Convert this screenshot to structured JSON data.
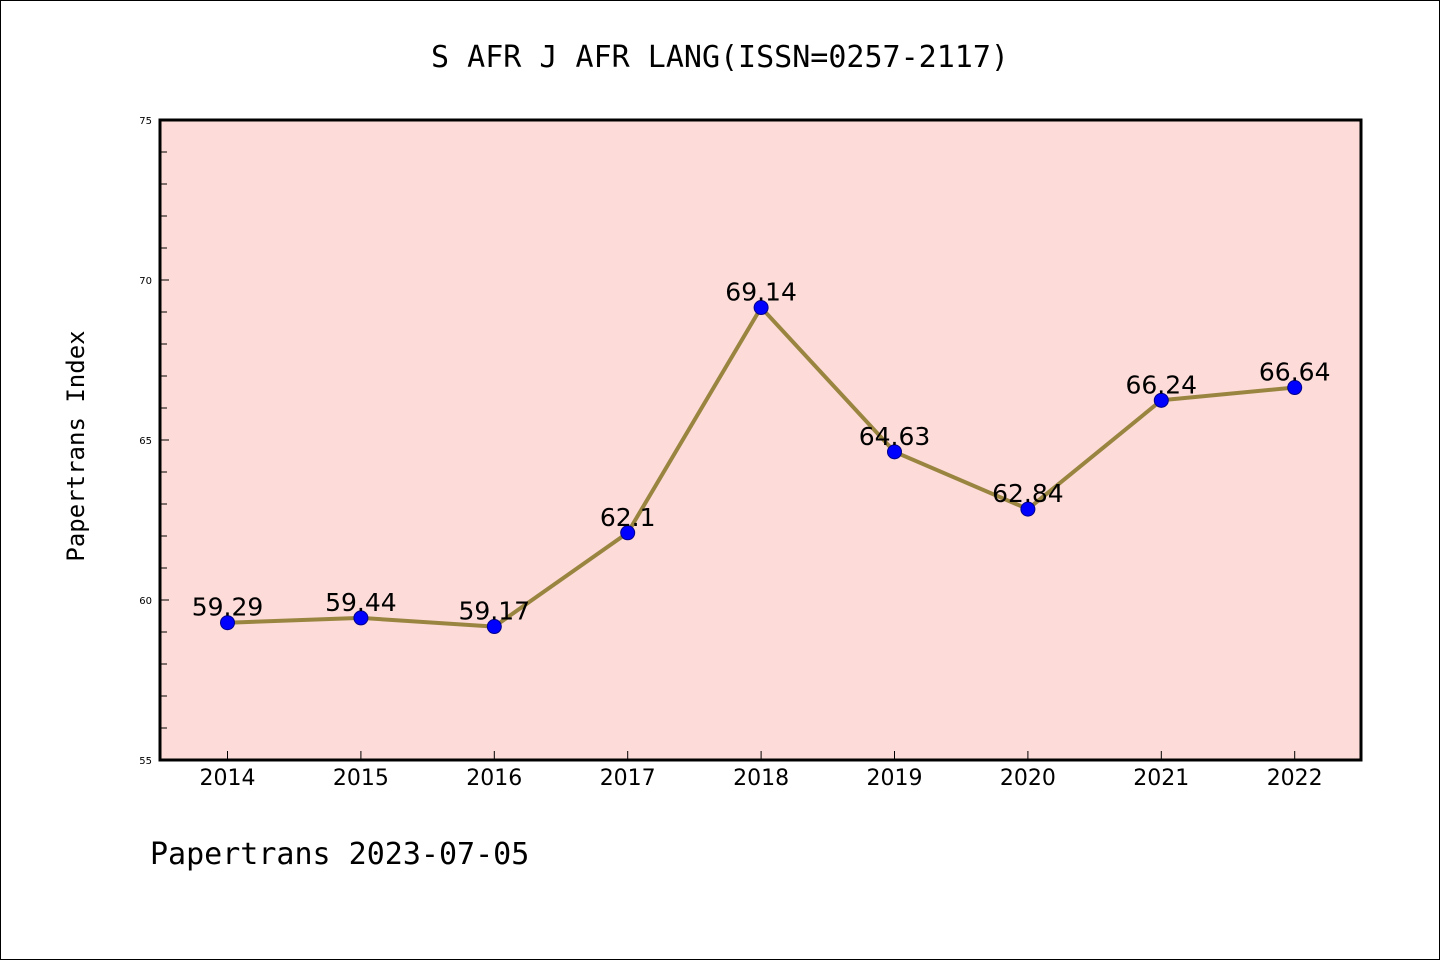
{
  "chart_data": {
    "type": "line",
    "title": "S AFR J AFR LANG(ISSN=0257-2117)",
    "xlabel": "",
    "ylabel": "Papertrans Index",
    "footer": "Papertrans 2023-07-05",
    "categories": [
      "2014",
      "2015",
      "2016",
      "2017",
      "2018",
      "2019",
      "2020",
      "2021",
      "2022"
    ],
    "series": [
      {
        "values": [
          59.29,
          59.44,
          59.17,
          62.1,
          69.14,
          64.63,
          62.84,
          66.24,
          66.64
        ],
        "labels": [
          "59.29",
          "59.44",
          "59.17",
          "62.1",
          "69.14",
          "64.63",
          "62.84",
          "66.24",
          "66.64"
        ]
      }
    ],
    "ylim": [
      55,
      75
    ],
    "yticks": [
      "55",
      "60",
      "65",
      "70",
      "75"
    ],
    "grid": false,
    "legend": "none",
    "colors": {
      "plot_background": "#fddbd8",
      "line": "#9a8540",
      "marker": "#0000ff",
      "marker_edge": "#00008b",
      "axis": "#000000"
    }
  }
}
